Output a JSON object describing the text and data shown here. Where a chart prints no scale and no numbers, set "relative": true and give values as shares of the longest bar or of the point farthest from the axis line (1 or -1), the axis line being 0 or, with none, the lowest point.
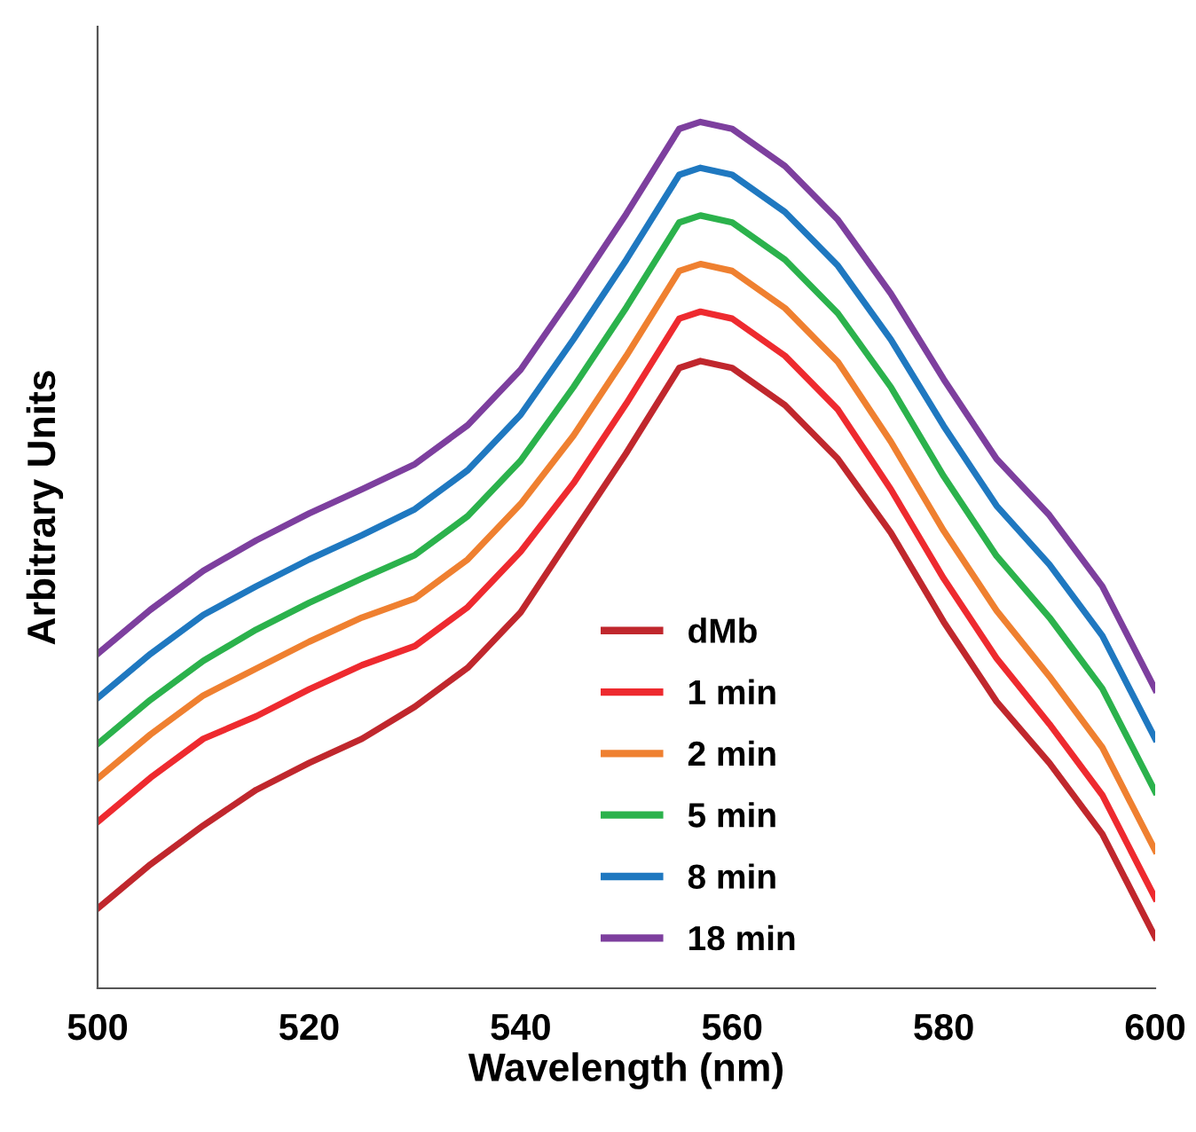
{
  "chart_data": {
    "type": "line",
    "relative": true,
    "xlabel": "Wavelength (nm)",
    "ylabel": "Arbitrary Units",
    "x": [
      500,
      505,
      510,
      515,
      520,
      525,
      530,
      535,
      540,
      545,
      550,
      555,
      557,
      560,
      565,
      570,
      575,
      580,
      585,
      590,
      595,
      600
    ],
    "xlim": [
      500,
      600
    ],
    "xticks": [
      500,
      520,
      540,
      560,
      580,
      600
    ],
    "grid": false,
    "legend": "bottom",
    "marker": "none",
    "line_style": "solid",
    "tick_labels": "x",
    "series": [
      {
        "name": "dMb",
        "color": "#c0272d",
        "values": [
          0.092,
          0.143,
          0.188,
          0.229,
          0.26,
          0.288,
          0.325,
          0.37,
          0.434,
          0.526,
          0.618,
          0.716,
          0.724,
          0.716,
          0.673,
          0.611,
          0.526,
          0.423,
          0.331,
          0.26,
          0.178,
          0.059
        ]
      },
      {
        "name": "1 min",
        "color": "#ee2a2f",
        "values": [
          0.192,
          0.243,
          0.288,
          0.314,
          0.345,
          0.373,
          0.395,
          0.44,
          0.504,
          0.583,
          0.675,
          0.773,
          0.781,
          0.773,
          0.73,
          0.668,
          0.576,
          0.473,
          0.381,
          0.305,
          0.223,
          0.104
        ]
      },
      {
        "name": "2 min",
        "color": "#ef8030",
        "values": [
          0.242,
          0.293,
          0.338,
          0.369,
          0.4,
          0.428,
          0.45,
          0.495,
          0.559,
          0.638,
          0.73,
          0.828,
          0.836,
          0.828,
          0.785,
          0.723,
          0.631,
          0.528,
          0.436,
          0.36,
          0.278,
          0.159
        ]
      },
      {
        "name": "5 min",
        "color": "#2bb24c",
        "values": [
          0.282,
          0.333,
          0.378,
          0.414,
          0.445,
          0.473,
          0.5,
          0.545,
          0.609,
          0.694,
          0.786,
          0.884,
          0.892,
          0.884,
          0.841,
          0.779,
          0.694,
          0.591,
          0.499,
          0.428,
          0.346,
          0.227
        ]
      },
      {
        "name": "8 min",
        "color": "#1f78c0",
        "values": [
          0.335,
          0.386,
          0.431,
          0.464,
          0.495,
          0.523,
          0.553,
          0.598,
          0.662,
          0.749,
          0.841,
          0.939,
          0.947,
          0.939,
          0.896,
          0.834,
          0.749,
          0.649,
          0.557,
          0.489,
          0.407,
          0.288
        ]
      },
      {
        "name": "18 min",
        "color": "#7d3f9e",
        "values": [
          0.386,
          0.437,
          0.482,
          0.517,
          0.548,
          0.576,
          0.605,
          0.65,
          0.714,
          0.802,
          0.894,
          0.992,
          1.0,
          0.992,
          0.949,
          0.887,
          0.802,
          0.703,
          0.611,
          0.546,
          0.464,
          0.345
        ]
      }
    ]
  }
}
